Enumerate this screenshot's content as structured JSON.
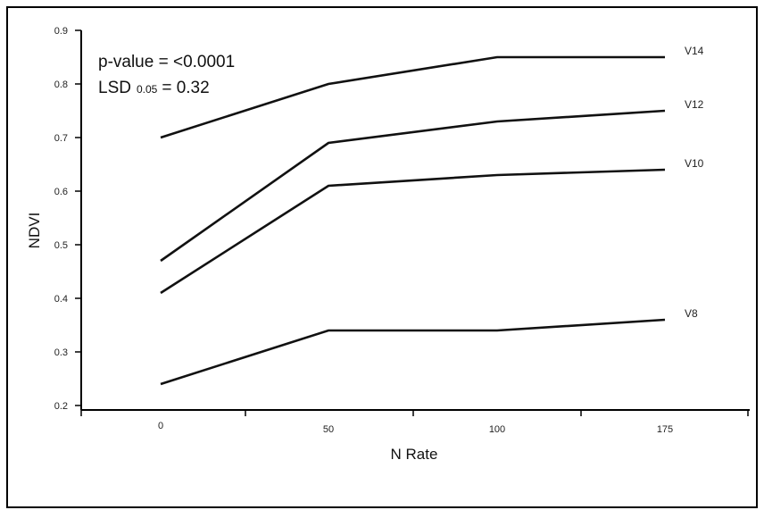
{
  "chart_data": {
    "type": "line",
    "xlabel": "N Rate",
    "ylabel": "NDVI",
    "categories": [
      "0",
      "50",
      "100",
      "175"
    ],
    "ylim": [
      0.2,
      0.9
    ],
    "yticks": [
      "0.2",
      "0.3",
      "0.4",
      "0.5",
      "0.6",
      "0.7",
      "0.8",
      "0.9"
    ],
    "series": [
      {
        "name": "V14",
        "values": [
          0.7,
          0.8,
          0.85,
          0.85
        ]
      },
      {
        "name": "V12",
        "values": [
          0.47,
          0.69,
          0.73,
          0.75
        ]
      },
      {
        "name": "V10",
        "values": [
          0.41,
          0.61,
          0.63,
          0.64
        ]
      },
      {
        "name": "V8",
        "values": [
          0.24,
          0.34,
          0.34,
          0.36
        ]
      }
    ],
    "annotations": {
      "pvalue": "p-value = <0.0001",
      "lsd_prefix": "LSD",
      "lsd_subscript": "0.05",
      "lsd_value": "= 0.32"
    },
    "grid": false,
    "legend": "inline-right"
  }
}
